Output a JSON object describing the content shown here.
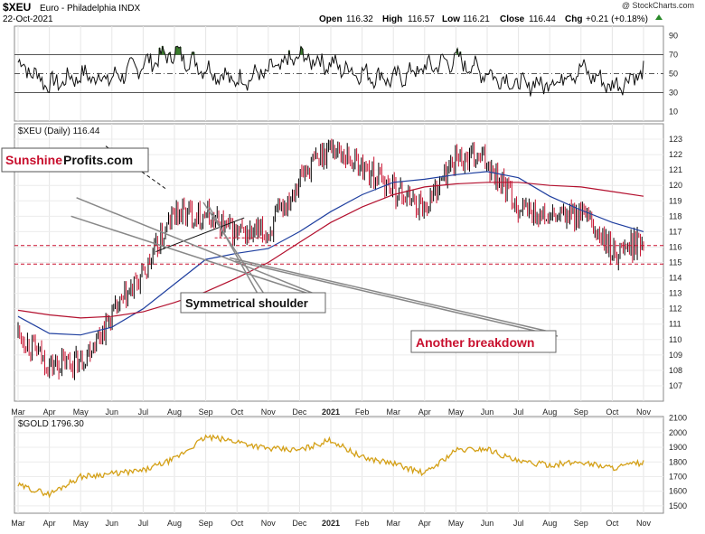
{
  "header": {
    "symbol": "$XEU",
    "name": "Euro - Philadelphia INDX",
    "date": "22-Oct-2021",
    "watermark": "@ StockCharts.com",
    "open_label": "Open",
    "open": "116.32",
    "high_label": "High",
    "high": "116.57",
    "low_label": "Low",
    "low": "116.21",
    "close_label": "Close",
    "close": "116.44",
    "chg_label": "Chg",
    "chg": "+0.21 (+0.18%)"
  },
  "logo": {
    "part1": "Sunshine",
    "part2": "Profits.com"
  },
  "colors": {
    "candle_up": "#000000",
    "candle_down": "#c8102e",
    "ma_blue": "#1f3f9f",
    "ma_red": "#b3102e",
    "gold_line": "#d4a017",
    "rsi_fill": "#3a7d2c",
    "dashed_red": "#c8102e",
    "annotation_red": "#c8102e"
  },
  "chart_data": [
    {
      "type": "line",
      "panel": "rsi",
      "ylim": [
        0,
        100
      ],
      "yticks": [
        10,
        30,
        50,
        70,
        90
      ],
      "reference_lines": [
        30,
        50,
        70
      ],
      "x": [
        "Mar",
        "Apr",
        "May",
        "Jun",
        "Jul",
        "Aug",
        "Sep",
        "Oct",
        "Nov",
        "Dec",
        "2021",
        "Feb",
        "Mar",
        "Apr",
        "May",
        "Jun",
        "Jul",
        "Aug",
        "Sep",
        "Oct",
        "Nov"
      ],
      "values": [
        62,
        38,
        48,
        45,
        60,
        72,
        55,
        42,
        52,
        68,
        60,
        50,
        44,
        56,
        65,
        50,
        38,
        40,
        55,
        36,
        52
      ]
    },
    {
      "type": "candlestick",
      "panel": "price",
      "label": "$XEU (Daily) 116.44",
      "ylim": [
        106,
        124
      ],
      "yticks": [
        107,
        108,
        109,
        110,
        111,
        112,
        113,
        114,
        115,
        116,
        117,
        118,
        119,
        120,
        121,
        122,
        123
      ],
      "x": [
        "Mar",
        "Apr",
        "May",
        "Jun",
        "Jul",
        "Aug",
        "Sep",
        "Oct",
        "Nov",
        "Dec",
        "2021",
        "Feb",
        "Mar",
        "Apr",
        "May",
        "Jun",
        "Jul",
        "Aug",
        "Sep",
        "Oct",
        "Nov"
      ],
      "close": [
        110.5,
        108.3,
        108.6,
        111.5,
        114.2,
        118.2,
        118.1,
        116.8,
        116.9,
        120.5,
        122.6,
        121.2,
        119.8,
        118.6,
        121.8,
        121.6,
        118.6,
        117.8,
        118.2,
        115.6,
        116.44
      ],
      "series": [
        {
          "name": "",
          "values": [
            111.5,
            110.4,
            110.3,
            110.8,
            112.0,
            113.6,
            115.2,
            115.6,
            115.9,
            117.0,
            118.3,
            119.4,
            120.2,
            120.4,
            120.7,
            120.9,
            120.5,
            119.3,
            118.4,
            117.6,
            117.0
          ]
        },
        {
          "name": "",
          "values": [
            111.9,
            111.6,
            111.4,
            111.5,
            111.8,
            112.4,
            113.1,
            114.0,
            115.0,
            116.3,
            117.6,
            118.6,
            119.4,
            119.9,
            120.1,
            120.2,
            120.2,
            120.0,
            119.9,
            119.6,
            119.3
          ]
        }
      ],
      "horizontal_lines": [
        116.1,
        114.9,
        116.6
      ],
      "trendlines": [
        {
          "x": [
            "Aug",
            "Jun"
          ],
          "y": [
            119.8,
            122.6
          ]
        },
        {
          "x": [
            "Jul",
            "Oct"
          ],
          "y": [
            115.7,
            117.9
          ]
        }
      ],
      "annotations": [
        "Symmetrical shoulder",
        "Another breakdown"
      ]
    },
    {
      "type": "line",
      "panel": "gold",
      "label": "$GOLD 1796.30",
      "ylim": [
        1450,
        2110
      ],
      "yticks": [
        1500,
        1600,
        1700,
        1800,
        1900,
        2000,
        2100
      ],
      "x": [
        "Mar",
        "Apr",
        "May",
        "Jun",
        "Jul",
        "Aug",
        "Sep",
        "Oct",
        "Nov",
        "Dec",
        "2021",
        "Feb",
        "Mar",
        "Apr",
        "May",
        "Jun",
        "Jul",
        "Aug",
        "Sep",
        "Oct",
        "Nov"
      ],
      "values": [
        1640,
        1580,
        1700,
        1720,
        1740,
        1820,
        1970,
        1940,
        1890,
        1880,
        1950,
        1830,
        1790,
        1720,
        1880,
        1890,
        1800,
        1780,
        1800,
        1760,
        1796.3
      ]
    }
  ]
}
